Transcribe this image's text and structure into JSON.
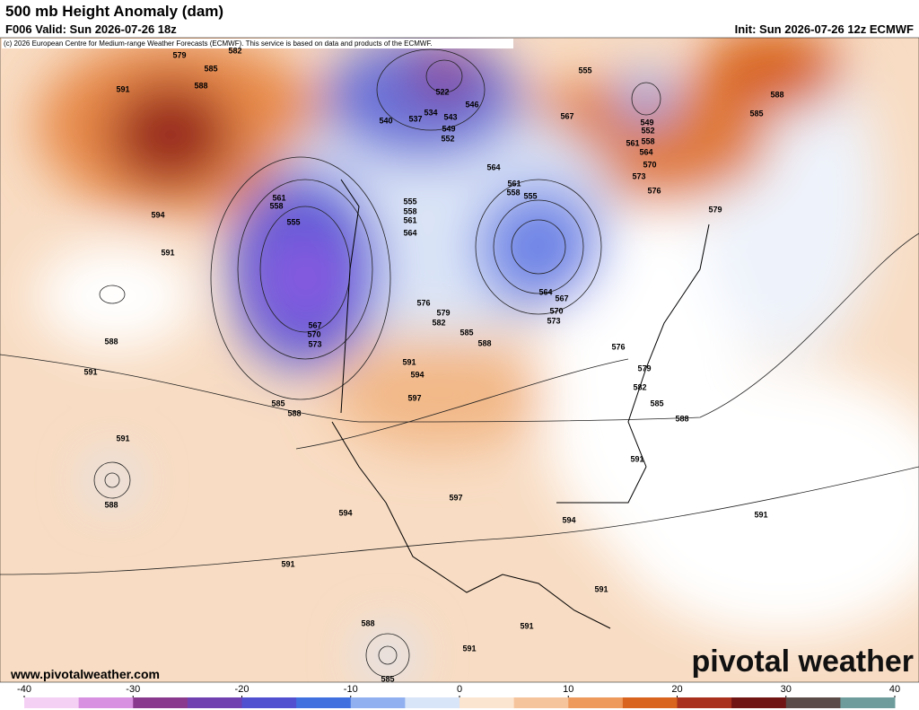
{
  "header": {
    "title": "500 mb Height Anomaly (dam)",
    "valid": "F006 Valid: Sun 2026-07-26 18z",
    "init": "Init: Sun 2026-07-26 12z ECMWF",
    "credit": "(c) 2026 European Centre for Medium-range Weather Forecasts (ECMWF). This service is based on data and products of the ECMWF."
  },
  "footer": {
    "website": "www.pivotalweather.com",
    "logo": "pivotal weather"
  },
  "colorbar": {
    "lim": [
      -40,
      40
    ],
    "ticks": [
      -40,
      -30,
      -20,
      -10,
      0,
      10,
      20,
      30,
      40
    ],
    "colors": [
      "#f5d0f5",
      "#d890e0",
      "#8a3a8e",
      "#7040b0",
      "#5050d0",
      "#4070e0",
      "#90b0f0",
      "#d8e4f8",
      "#fbe5d0",
      "#f6c49c",
      "#ee9a5c",
      "#d8641e",
      "#a8301c",
      "#701414",
      "#5a4a48",
      "#6e9c9c"
    ]
  },
  "contour_labels": [
    579,
    585,
    582,
    591,
    588,
    594,
    591,
    588,
    591,
    591,
    588,
    585,
    588,
    561,
    558,
    555,
    567,
    570,
    573,
    522,
    540,
    537,
    534,
    543,
    546,
    549,
    552,
    555,
    558,
    561,
    564,
    561,
    558,
    555,
    564,
    567,
    570,
    573,
    576,
    579,
    582,
    585,
    588,
    591,
    594,
    597,
    567,
    564,
    561,
    558,
    564,
    570,
    573,
    576,
    579,
    549,
    552,
    555,
    588,
    585,
    576,
    579,
    582,
    585,
    588,
    591,
    597,
    594,
    594,
    591,
    591,
    591,
    591,
    591,
    588,
    585
  ]
}
